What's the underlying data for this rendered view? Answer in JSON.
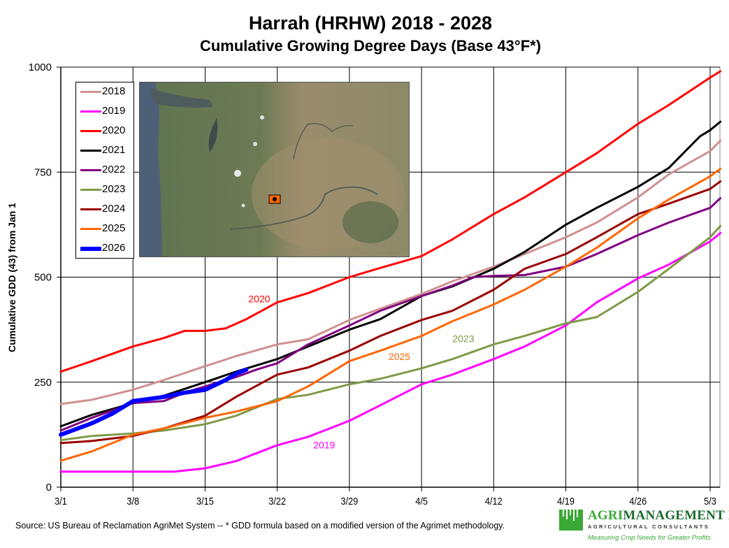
{
  "title": "Harrah (HRHW) 2018 - 2028",
  "subtitle": "Cumulative Growing Degree Days (Base 43°F*)",
  "source_note": "Source:  US Bureau of Reclamation AgriMet System --  * GDD formula based on a modified version of the Agrimet methodology.",
  "logo": {
    "name_part1": "AGRI",
    "name_part2": "MANAGEMENT INC.",
    "registered": "®",
    "subtitle": "AGRICULTURAL CONSULTANTS",
    "tagline": "Measuring Crop Needs for Greater Profits"
  },
  "inset_map": {
    "description": "satellite-map-washington-state",
    "marker": "station-marker"
  },
  "chart_data": {
    "type": "line",
    "title": "Harrah (HRHW) 2018 - 2028",
    "subtitle": "Cumulative Growing Degree Days (Base 43°F*)",
    "xlabel": "",
    "ylabel": "Cumulative GDD (43) from Jan 1",
    "x_unit": "days since 3/1",
    "xlim": [
      0,
      64
    ],
    "ylim": [
      0,
      1000
    ],
    "yticks": [
      0,
      250,
      500,
      750,
      1000
    ],
    "xticks": [
      {
        "day": 0,
        "label": "3/1"
      },
      {
        "day": 7,
        "label": "3/8"
      },
      {
        "day": 14,
        "label": "3/15"
      },
      {
        "day": 21,
        "label": "3/22"
      },
      {
        "day": 28,
        "label": "3/29"
      },
      {
        "day": 35,
        "label": "4/5"
      },
      {
        "day": 42,
        "label": "4/12"
      },
      {
        "day": 49,
        "label": "4/19"
      },
      {
        "day": 56,
        "label": "4/26"
      },
      {
        "day": 63,
        "label": "5/3"
      }
    ],
    "grid": true,
    "legend_position": "top-left",
    "series": [
      {
        "name": "2018",
        "color": "#d09090",
        "width": 3,
        "points": [
          [
            0,
            198
          ],
          [
            3,
            208
          ],
          [
            7,
            232
          ],
          [
            10,
            255
          ],
          [
            14,
            288
          ],
          [
            17,
            312
          ],
          [
            21,
            340
          ],
          [
            24,
            352
          ],
          [
            28,
            398
          ],
          [
            31,
            425
          ],
          [
            35,
            460
          ],
          [
            38,
            490
          ],
          [
            42,
            525
          ],
          [
            45,
            555
          ],
          [
            49,
            595
          ],
          [
            52,
            630
          ],
          [
            56,
            690
          ],
          [
            59,
            745
          ],
          [
            63,
            800
          ],
          [
            64,
            825
          ]
        ]
      },
      {
        "name": "2019",
        "color": "#ff00ff",
        "width": 3,
        "points": [
          [
            0,
            37
          ],
          [
            7,
            37
          ],
          [
            11,
            37
          ],
          [
            14,
            45
          ],
          [
            17,
            62
          ],
          [
            21,
            100
          ],
          [
            24,
            120
          ],
          [
            28,
            158
          ],
          [
            31,
            195
          ],
          [
            35,
            245
          ],
          [
            38,
            268
          ],
          [
            42,
            305
          ],
          [
            45,
            335
          ],
          [
            49,
            385
          ],
          [
            52,
            440
          ],
          [
            56,
            497
          ],
          [
            59,
            530
          ],
          [
            63,
            585
          ],
          [
            64,
            605
          ]
        ]
      },
      {
        "name": "2020",
        "color": "#ff0000",
        "width": 3,
        "points": [
          [
            0,
            275
          ],
          [
            3,
            300
          ],
          [
            7,
            335
          ],
          [
            10,
            355
          ],
          [
            12,
            372
          ],
          [
            14,
            372
          ],
          [
            16,
            378
          ],
          [
            18,
            400
          ],
          [
            21,
            440
          ],
          [
            24,
            462
          ],
          [
            28,
            500
          ],
          [
            31,
            522
          ],
          [
            35,
            550
          ],
          [
            38,
            590
          ],
          [
            42,
            650
          ],
          [
            45,
            690
          ],
          [
            49,
            750
          ],
          [
            52,
            795
          ],
          [
            56,
            865
          ],
          [
            59,
            910
          ],
          [
            63,
            975
          ],
          [
            64,
            990
          ]
        ]
      },
      {
        "name": "2021",
        "color": "#000000",
        "width": 3,
        "points": [
          [
            0,
            145
          ],
          [
            3,
            172
          ],
          [
            7,
            200
          ],
          [
            10,
            218
          ],
          [
            14,
            250
          ],
          [
            17,
            275
          ],
          [
            21,
            305
          ],
          [
            24,
            335
          ],
          [
            28,
            375
          ],
          [
            31,
            400
          ],
          [
            35,
            455
          ],
          [
            38,
            478
          ],
          [
            42,
            520
          ],
          [
            45,
            560
          ],
          [
            49,
            625
          ],
          [
            52,
            665
          ],
          [
            56,
            715
          ],
          [
            59,
            760
          ],
          [
            62,
            835
          ],
          [
            63,
            850
          ],
          [
            64,
            870
          ]
        ]
      },
      {
        "name": "2022",
        "color": "#800080",
        "width": 3,
        "points": [
          [
            0,
            135
          ],
          [
            3,
            165
          ],
          [
            7,
            200
          ],
          [
            10,
            205
          ],
          [
            12,
            225
          ],
          [
            14,
            240
          ],
          [
            17,
            262
          ],
          [
            19,
            280
          ],
          [
            21,
            295
          ],
          [
            24,
            340
          ],
          [
            28,
            385
          ],
          [
            31,
            420
          ],
          [
            35,
            455
          ],
          [
            38,
            480
          ],
          [
            40,
            500
          ],
          [
            42,
            503
          ],
          [
            45,
            505
          ],
          [
            49,
            525
          ],
          [
            52,
            555
          ],
          [
            56,
            600
          ],
          [
            59,
            630
          ],
          [
            63,
            665
          ],
          [
            64,
            688
          ]
        ]
      },
      {
        "name": "2023",
        "color": "#7f9a48",
        "width": 3,
        "points": [
          [
            0,
            112
          ],
          [
            3,
            122
          ],
          [
            7,
            128
          ],
          [
            10,
            135
          ],
          [
            14,
            150
          ],
          [
            17,
            170
          ],
          [
            21,
            210
          ],
          [
            24,
            220
          ],
          [
            28,
            245
          ],
          [
            31,
            258
          ],
          [
            35,
            283
          ],
          [
            38,
            305
          ],
          [
            42,
            340
          ],
          [
            45,
            360
          ],
          [
            49,
            390
          ],
          [
            52,
            405
          ],
          [
            56,
            465
          ],
          [
            59,
            520
          ],
          [
            63,
            595
          ],
          [
            64,
            622
          ]
        ]
      },
      {
        "name": "2024",
        "color": "#990000",
        "width": 3,
        "points": [
          [
            0,
            105
          ],
          [
            3,
            110
          ],
          [
            7,
            122
          ],
          [
            10,
            140
          ],
          [
            14,
            170
          ],
          [
            17,
            215
          ],
          [
            21,
            268
          ],
          [
            24,
            285
          ],
          [
            28,
            325
          ],
          [
            31,
            360
          ],
          [
            35,
            398
          ],
          [
            38,
            420
          ],
          [
            42,
            470
          ],
          [
            45,
            520
          ],
          [
            49,
            555
          ],
          [
            52,
            595
          ],
          [
            56,
            650
          ],
          [
            59,
            675
          ],
          [
            63,
            710
          ],
          [
            64,
            728
          ]
        ]
      },
      {
        "name": "2025",
        "color": "#ff6600",
        "width": 3,
        "points": [
          [
            0,
            63
          ],
          [
            3,
            85
          ],
          [
            7,
            125
          ],
          [
            10,
            140
          ],
          [
            14,
            165
          ],
          [
            17,
            180
          ],
          [
            21,
            205
          ],
          [
            24,
            240
          ],
          [
            28,
            300
          ],
          [
            31,
            325
          ],
          [
            35,
            360
          ],
          [
            38,
            395
          ],
          [
            42,
            435
          ],
          [
            45,
            470
          ],
          [
            49,
            525
          ],
          [
            52,
            570
          ],
          [
            56,
            640
          ],
          [
            59,
            685
          ],
          [
            63,
            740
          ],
          [
            64,
            758
          ]
        ]
      },
      {
        "name": "2026",
        "color": "#0000ff",
        "width": 6,
        "points": [
          [
            0,
            125
          ],
          [
            3,
            152
          ],
          [
            5,
            175
          ],
          [
            7,
            205
          ],
          [
            10,
            215
          ],
          [
            12,
            225
          ],
          [
            14,
            232
          ],
          [
            16,
            255
          ],
          [
            17,
            270
          ],
          [
            18,
            280
          ]
        ]
      }
    ],
    "annotations": [
      {
        "text": "2020",
        "color": "#ff0000",
        "day": 18.2,
        "value": 440
      },
      {
        "text": "2025",
        "color": "#ff6600",
        "day": 31.8,
        "value": 303
      },
      {
        "text": "2023",
        "color": "#7f9a48",
        "day": 38,
        "value": 345
      },
      {
        "text": "2019",
        "color": "#ff00ff",
        "day": 24.5,
        "value": 92
      }
    ]
  }
}
